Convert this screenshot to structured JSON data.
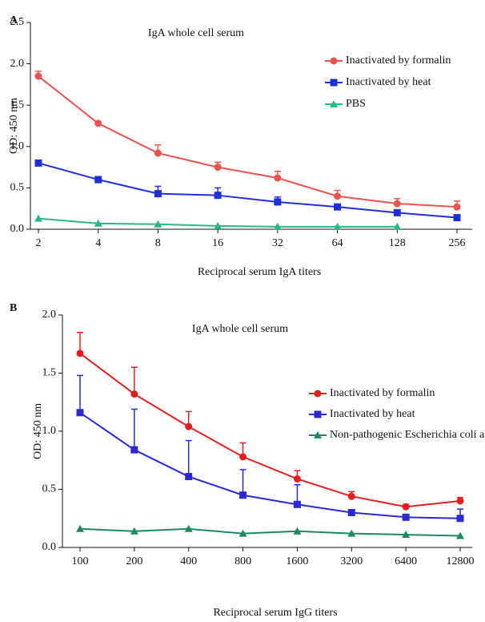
{
  "chart_data": [
    {
      "type": "line",
      "panel_label": "A",
      "title": "IgA whole cell serum",
      "xlabel": "Reciprocal serum IgA titers",
      "ylabel": "OD: 450 nm",
      "categories": [
        "2",
        "4",
        "8",
        "16",
        "32",
        "64",
        "128",
        "256"
      ],
      "ylim": [
        0,
        2.5
      ],
      "yticks": [
        {
          "value": 0,
          "label": "0.0"
        },
        0.5,
        {
          "value": 1,
          "label": "1.0"
        },
        1.5,
        {
          "value": 2,
          "label": "2.0"
        },
        2.5
      ],
      "series": [
        {
          "name": "Inactivated by formalin",
          "color": "#e8524f",
          "marker": "circle",
          "values": [
            1.85,
            1.28,
            0.92,
            0.75,
            0.62,
            0.4,
            0.31,
            0.27
          ],
          "errors": [
            0.06,
            0.02,
            0.1,
            0.06,
            0.08,
            0.07,
            0.06,
            0.07
          ]
        },
        {
          "name": "Inactivated by heat",
          "color": "#1f2fd6",
          "marker": "square",
          "values": [
            0.8,
            0.6,
            0.43,
            0.41,
            0.33,
            0.27,
            0.2,
            0.14
          ],
          "errors": [
            0.02,
            0.02,
            0.09,
            0.09,
            0.06,
            0.03,
            0.02,
            0.02
          ]
        },
        {
          "name": "PBS",
          "color": "#2bb58a",
          "marker": "triangle",
          "values": [
            0.13,
            0.07,
            0.06,
            0.04,
            0.03,
            0.03,
            0.03,
            null
          ]
        }
      ]
    },
    {
      "type": "line",
      "panel_label": "B",
      "title": "IgA whole cell serum",
      "xlabel": "Reciprocal serum IgG titers",
      "ylabel": "OD: 450 nm",
      "categories": [
        "100",
        "200",
        "400",
        "800",
        "1600",
        "3200",
        "6400",
        "12800"
      ],
      "ylim": [
        0,
        2
      ],
      "yticks": [
        {
          "value": 0,
          "label": "0.0"
        },
        0.5,
        {
          "value": 1,
          "label": "1.0"
        },
        1.5,
        {
          "value": 2,
          "label": "2.0"
        }
      ],
      "series": [
        {
          "name": "Inactivated by formalin",
          "color": "#e02020",
          "marker": "circle",
          "values": [
            1.67,
            1.32,
            1.04,
            0.78,
            0.59,
            0.44,
            0.35,
            0.4
          ],
          "errors": [
            0.18,
            0.23,
            0.13,
            0.12,
            0.07,
            0.04,
            0.02,
            0.03
          ]
        },
        {
          "name": "Inactivated by heat",
          "color": "#2a2ad0",
          "marker": "square",
          "values": [
            1.16,
            0.84,
            0.61,
            0.45,
            0.37,
            0.3,
            0.26,
            0.25
          ],
          "errors": [
            0.32,
            0.35,
            0.31,
            0.22,
            0.17,
            0.02,
            0.02,
            0.08
          ]
        },
        {
          "name": "Non-pathogenic Escherichia coli as control",
          "color": "#1a8a60",
          "marker": "triangle",
          "values": [
            0.16,
            0.14,
            0.16,
            0.12,
            0.14,
            0.12,
            0.11,
            0.1
          ]
        }
      ]
    }
  ]
}
